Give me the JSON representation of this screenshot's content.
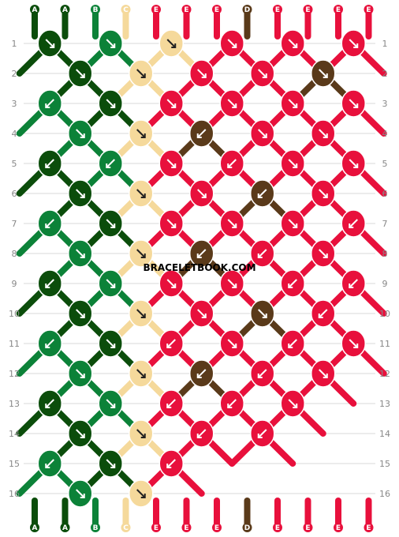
{
  "pattern": {
    "strands": [
      "A",
      "A",
      "B",
      "C",
      "E",
      "E",
      "E",
      "D",
      "E",
      "E",
      "E",
      "E"
    ],
    "colors": {
      "A": "#0b4d0b",
      "B": "#0c8238",
      "C": "#f5d99b",
      "D": "#5a3a1a",
      "E": "#e8103c"
    },
    "rows": [
      "1",
      "2",
      "3",
      "4",
      "5",
      "6",
      "7",
      "8",
      "9",
      "10",
      "11",
      "12",
      "13",
      "14",
      "15",
      "16"
    ],
    "knots": [
      [
        "A",
        "B",
        "C",
        "E",
        "E",
        "E"
      ],
      [
        "A",
        "C",
        "E",
        "E",
        "D"
      ],
      [
        "B",
        "A",
        "E",
        "E",
        "E",
        "E"
      ],
      [
        "B",
        "C",
        "D",
        "E",
        "E"
      ],
      [
        "A",
        "B",
        "E",
        "E",
        "E",
        "E"
      ],
      [
        "A",
        "C",
        "E",
        "D",
        "E"
      ],
      [
        "B",
        "A",
        "E",
        "E",
        "E",
        "E"
      ],
      [
        "B",
        "C",
        "D",
        "E",
        "E"
      ],
      [
        "A",
        "B",
        "E",
        "E",
        "E",
        "E"
      ],
      [
        "A",
        "C",
        "E",
        "D",
        "E"
      ],
      [
        "B",
        "A",
        "E",
        "E",
        "E",
        "E"
      ],
      [
        "B",
        "C",
        "D",
        "E",
        "E"
      ],
      [
        "A",
        "B",
        "E",
        "E",
        "E"
      ],
      [
        "A",
        "C",
        "E",
        "E"
      ],
      [
        "B",
        "A",
        "E"
      ],
      [
        "B",
        "C"
      ]
    ],
    "arrows": [
      [
        "dr",
        "dr",
        "dr",
        "dr",
        "",
        "",
        ""
      ],
      [
        "dr",
        "dr",
        "dr",
        "",
        "",
        ""
      ],
      [
        "dl",
        "dr",
        "dr",
        "dr",
        "",
        ""
      ],
      [
        "dr",
        "dr",
        "dl",
        "dr",
        ""
      ],
      [
        "dl",
        "dl",
        "dr",
        "dl",
        "dr",
        "",
        ""
      ],
      [
        "dr",
        "dr",
        "dr",
        "dl",
        "dr",
        ""
      ],
      [
        "dl",
        "dr",
        "dr",
        "dr",
        "dr",
        "dl",
        ""
      ],
      [
        "dr",
        "dr",
        "dl",
        "dl",
        "dr",
        ""
      ],
      [
        "dl",
        "dr",
        "dr",
        "dr",
        "dl",
        "dl",
        ""
      ],
      [
        "dr",
        "dr",
        "dr",
        "dr",
        "dl",
        ""
      ],
      [
        "dl",
        "dr",
        "dl",
        "dr",
        "dl",
        ""
      ],
      [
        "dr",
        "dr",
        "dl",
        "dl",
        ""
      ],
      [
        "dl",
        "dr",
        "dl",
        "dl",
        ""
      ],
      [
        "dr",
        "dr",
        "dl",
        "dl"
      ],
      [
        "dl",
        "dr",
        "dl"
      ],
      [
        "dr",
        "dr"
      ]
    ]
  },
  "watermark": "BRACELETBOOK.COM"
}
